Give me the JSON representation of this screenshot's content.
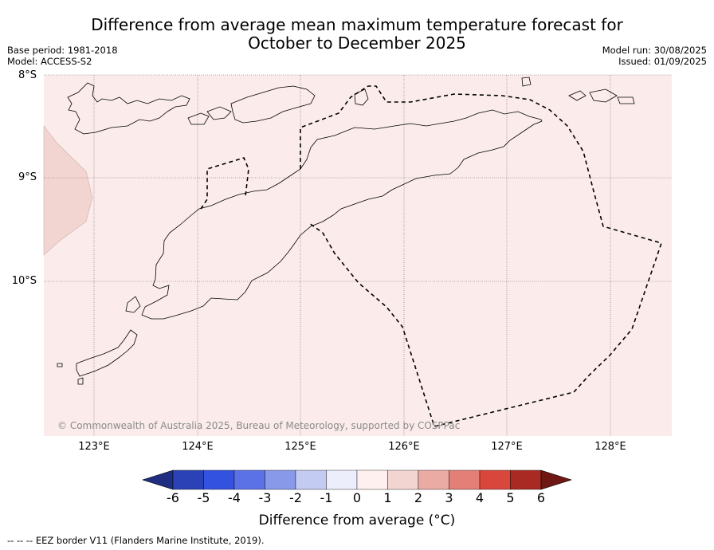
{
  "title_line1": "Difference from average mean maximum temperature forecast for",
  "title_line2": "October to December 2025",
  "base_period": "Base period: 1981-2018",
  "model": "Model: ACCESS-S2",
  "model_run": "Model run: 30/08/2025",
  "issued": "Issued: 01/09/2025",
  "lat_labels": [
    "8°S",
    "9°S",
    "10°S"
  ],
  "lon_labels": [
    "123°E",
    "124°E",
    "125°E",
    "126°E",
    "127°E",
    "128°E"
  ],
  "credit": "© Commonwealth of Australia 2025, Bureau of Meteorology, supported by COSPPac",
  "colorbar": {
    "label": "Difference from average (°C)",
    "ticks": [
      "-6",
      "-5",
      "-4",
      "-3",
      "-2",
      "-1",
      "0",
      "1",
      "2",
      "3",
      "4",
      "5",
      "6"
    ],
    "colors": [
      "#1f2e80",
      "#2a42b5",
      "#3452e0",
      "#5a72e6",
      "#8799e8",
      "#c3cbf3",
      "#eceefc",
      "#fdf0ef",
      "#f2d5d1",
      "#ebaba5",
      "#e37f76",
      "#d9473c",
      "#a82a22",
      "#6e1713"
    ]
  },
  "map_fill_colors": {
    "main": "#fbeceb",
    "west_patch": "#f2d5d1",
    "coastline": "#000000",
    "eez_border": "#000000"
  },
  "footer": "--  --  -- EEZ border V11 (Flanders Marine Institute, 2019)."
}
